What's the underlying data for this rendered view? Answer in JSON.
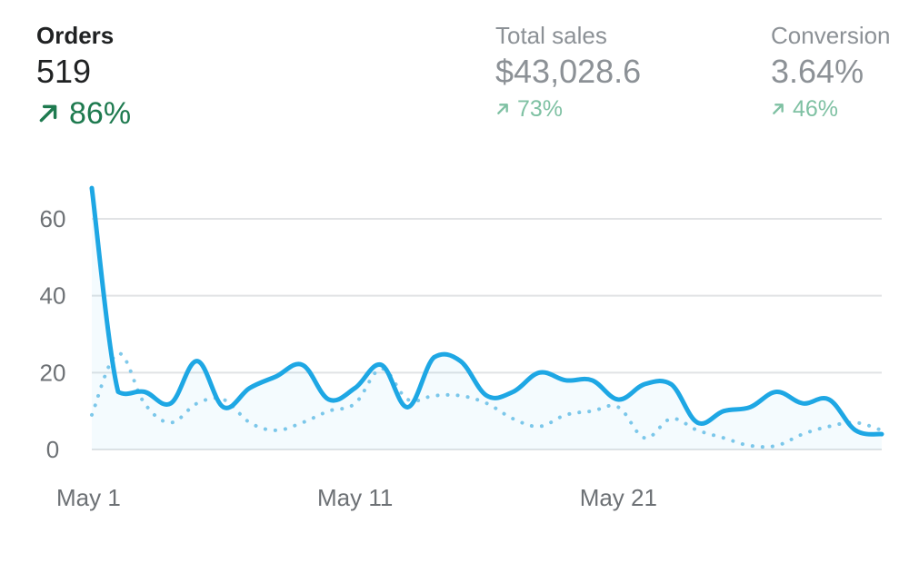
{
  "metrics": {
    "orders": {
      "label": "Orders",
      "value": "519",
      "change": "86%"
    },
    "total_sales": {
      "label": "Total sales",
      "value": "$43,028.6",
      "change": "73%"
    },
    "conversion": {
      "label": "Conversion",
      "value": "3.64%",
      "change": "46%"
    }
  },
  "colors": {
    "primary_line": "#1ea7e4",
    "comparison_line": "#80c9ea",
    "positive_strong": "#1e7a4f",
    "positive_muted": "#7fc1a3",
    "muted_text": "#8c9196",
    "gridline": "#e1e3e5"
  },
  "icons": {
    "trend": "arrow-up-right-icon"
  },
  "chart_data": {
    "type": "line",
    "x": [
      "May 1",
      "May 2",
      "May 3",
      "May 4",
      "May 5",
      "May 6",
      "May 7",
      "May 8",
      "May 9",
      "May 10",
      "May 11",
      "May 12",
      "May 13",
      "May 14",
      "May 15",
      "May 16",
      "May 17",
      "May 18",
      "May 19",
      "May 20",
      "May 21",
      "May 22",
      "May 23",
      "May 24",
      "May 25",
      "May 26",
      "May 27",
      "May 28",
      "May 29",
      "May 30",
      "May 31"
    ],
    "x_tick_labels": [
      "May 1",
      "May 11",
      "May 21"
    ],
    "y_ticks": [
      0,
      20,
      40,
      60
    ],
    "ylim": [
      0,
      68
    ],
    "grid": true,
    "series": [
      {
        "values": [
          68,
          15,
          15,
          12,
          23,
          11,
          16,
          19,
          22,
          13,
          16,
          22,
          11,
          24,
          23,
          14,
          15,
          20,
          18,
          18,
          13,
          17,
          17,
          7,
          10,
          11,
          15,
          12,
          13,
          5,
          4
        ],
        "style": "solid"
      },
      {
        "values": [
          9,
          25,
          12,
          7,
          12,
          13,
          7,
          5,
          7,
          10,
          12,
          21,
          13,
          14,
          14,
          12,
          8,
          6,
          9,
          10,
          11,
          3,
          8,
          5,
          3,
          1,
          1,
          4,
          6,
          7,
          5
        ],
        "style": "dotted"
      }
    ]
  }
}
